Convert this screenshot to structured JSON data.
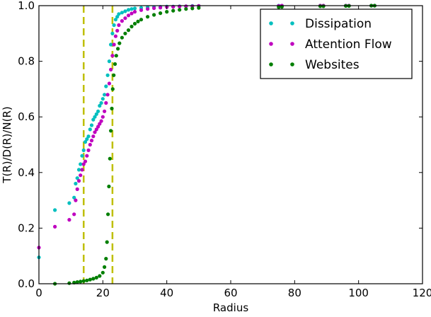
{
  "chart_data": {
    "type": "scatter",
    "title": "",
    "xlabel": "Radius",
    "ylabel": "T(R)/D(R)/N(R)",
    "xlim": [
      0,
      120
    ],
    "ylim": [
      0.0,
      1.0
    ],
    "xticks": [
      0,
      20,
      40,
      60,
      80,
      100,
      120
    ],
    "xtick_labels": [
      "0",
      "20",
      "40",
      "60",
      "80",
      "100",
      "120"
    ],
    "yticks": [
      0.0,
      0.2,
      0.4,
      0.6,
      0.8,
      1.0
    ],
    "ytick_labels": [
      "0.0",
      "0.2",
      "0.4",
      "0.6",
      "0.8",
      "1.0"
    ],
    "grid": false,
    "legend_position": "top-right",
    "vlines": [
      {
        "x": 14,
        "color": "#bfbf00",
        "style": "dashed"
      },
      {
        "x": 23,
        "color": "#bfbf00",
        "style": "dashed"
      }
    ],
    "series": [
      {
        "name": "Dissipation",
        "color": "#00bfbf",
        "points": [
          [
            0,
            0.095
          ],
          [
            5,
            0.265
          ],
          [
            9.5,
            0.29
          ],
          [
            11,
            0.31
          ],
          [
            11.5,
            0.36
          ],
          [
            12,
            0.38
          ],
          [
            12.5,
            0.41
          ],
          [
            13,
            0.43
          ],
          [
            13.5,
            0.46
          ],
          [
            14,
            0.48
          ],
          [
            14.5,
            0.51
          ],
          [
            15,
            0.52
          ],
          [
            15.5,
            0.53
          ],
          [
            16,
            0.555
          ],
          [
            16.5,
            0.57
          ],
          [
            17,
            0.59
          ],
          [
            17.5,
            0.6
          ],
          [
            18,
            0.61
          ],
          [
            18.5,
            0.62
          ],
          [
            19,
            0.64
          ],
          [
            19.5,
            0.65
          ],
          [
            20,
            0.665
          ],
          [
            20.5,
            0.68
          ],
          [
            21,
            0.71
          ],
          [
            21.5,
            0.75
          ],
          [
            22,
            0.8
          ],
          [
            22.5,
            0.86
          ],
          [
            23,
            0.9
          ],
          [
            23.5,
            0.93
          ],
          [
            24,
            0.95
          ],
          [
            24.5,
            0.96
          ],
          [
            25,
            0.97
          ],
          [
            26,
            0.975
          ],
          [
            27,
            0.98
          ],
          [
            28,
            0.985
          ],
          [
            29,
            0.988
          ],
          [
            30,
            0.99
          ],
          [
            32,
            0.992
          ],
          [
            34,
            0.994
          ],
          [
            36,
            0.995
          ],
          [
            38,
            0.996
          ],
          [
            40,
            0.997
          ],
          [
            42,
            0.997
          ],
          [
            44,
            0.998
          ],
          [
            46,
            0.998
          ],
          [
            48,
            0.999
          ],
          [
            50,
            0.999
          ],
          [
            75,
            1.0
          ],
          [
            76,
            1.0
          ],
          [
            88,
            1.0
          ],
          [
            89,
            1.0
          ],
          [
            96,
            1.0
          ],
          [
            97,
            1.0
          ],
          [
            104,
            1.0
          ],
          [
            105,
            1.0
          ]
        ]
      },
      {
        "name": "Attention Flow",
        "color": "#bf00bf",
        "points": [
          [
            0,
            0.13
          ],
          [
            5,
            0.205
          ],
          [
            9.5,
            0.23
          ],
          [
            11,
            0.25
          ],
          [
            11.5,
            0.3
          ],
          [
            12,
            0.34
          ],
          [
            12.5,
            0.37
          ],
          [
            13,
            0.39
          ],
          [
            13.5,
            0.41
          ],
          [
            14,
            0.43
          ],
          [
            14.5,
            0.44
          ],
          [
            15,
            0.46
          ],
          [
            15.5,
            0.48
          ],
          [
            16,
            0.5
          ],
          [
            16.5,
            0.515
          ],
          [
            17,
            0.53
          ],
          [
            17.5,
            0.545
          ],
          [
            18,
            0.555
          ],
          [
            18.5,
            0.565
          ],
          [
            19,
            0.575
          ],
          [
            19.5,
            0.585
          ],
          [
            20,
            0.6
          ],
          [
            20.5,
            0.62
          ],
          [
            21,
            0.65
          ],
          [
            21.5,
            0.68
          ],
          [
            22,
            0.72
          ],
          [
            22.5,
            0.77
          ],
          [
            23,
            0.82
          ],
          [
            23.5,
            0.86
          ],
          [
            24,
            0.89
          ],
          [
            24.5,
            0.91
          ],
          [
            25,
            0.93
          ],
          [
            26,
            0.945
          ],
          [
            27,
            0.955
          ],
          [
            28,
            0.965
          ],
          [
            29,
            0.972
          ],
          [
            30,
            0.978
          ],
          [
            32,
            0.984
          ],
          [
            34,
            0.988
          ],
          [
            36,
            0.991
          ],
          [
            38,
            0.993
          ],
          [
            40,
            0.995
          ],
          [
            42,
            0.996
          ],
          [
            44,
            0.997
          ],
          [
            46,
            0.998
          ],
          [
            48,
            0.998
          ],
          [
            50,
            0.999
          ],
          [
            75,
            0.999
          ],
          [
            76,
            1.0
          ],
          [
            88,
            1.0
          ],
          [
            89,
            1.0
          ],
          [
            96,
            1.0
          ],
          [
            97,
            1.0
          ],
          [
            104,
            1.0
          ],
          [
            105,
            1.0
          ]
        ]
      },
      {
        "name": "Websites",
        "color": "#007f00",
        "points": [
          [
            5,
            0.0
          ],
          [
            9.5,
            0.002
          ],
          [
            11,
            0.004
          ],
          [
            12,
            0.006
          ],
          [
            13,
            0.008
          ],
          [
            14,
            0.01
          ],
          [
            15,
            0.012
          ],
          [
            16,
            0.015
          ],
          [
            17,
            0.018
          ],
          [
            18,
            0.022
          ],
          [
            19,
            0.028
          ],
          [
            20,
            0.04
          ],
          [
            20.5,
            0.06
          ],
          [
            21,
            0.09
          ],
          [
            21.3,
            0.15
          ],
          [
            21.6,
            0.25
          ],
          [
            21.9,
            0.35
          ],
          [
            22.2,
            0.45
          ],
          [
            22.5,
            0.55
          ],
          [
            22.8,
            0.63
          ],
          [
            23.1,
            0.7
          ],
          [
            23.4,
            0.75
          ],
          [
            23.8,
            0.79
          ],
          [
            24.2,
            0.82
          ],
          [
            24.7,
            0.845
          ],
          [
            25.2,
            0.865
          ],
          [
            26,
            0.885
          ],
          [
            27,
            0.9
          ],
          [
            28,
            0.912
          ],
          [
            29,
            0.925
          ],
          [
            30,
            0.935
          ],
          [
            31,
            0.943
          ],
          [
            32,
            0.95
          ],
          [
            34,
            0.96
          ],
          [
            36,
            0.967
          ],
          [
            38,
            0.973
          ],
          [
            40,
            0.978
          ],
          [
            42,
            0.982
          ],
          [
            44,
            0.985
          ],
          [
            46,
            0.988
          ],
          [
            48,
            0.99
          ],
          [
            50,
            0.992
          ],
          [
            75,
            0.995
          ],
          [
            76,
            0.996
          ],
          [
            88,
            0.998
          ],
          [
            89,
            0.998
          ],
          [
            96,
            0.999
          ],
          [
            97,
            0.999
          ],
          [
            104,
            1.0
          ],
          [
            105,
            1.0
          ]
        ]
      }
    ]
  }
}
